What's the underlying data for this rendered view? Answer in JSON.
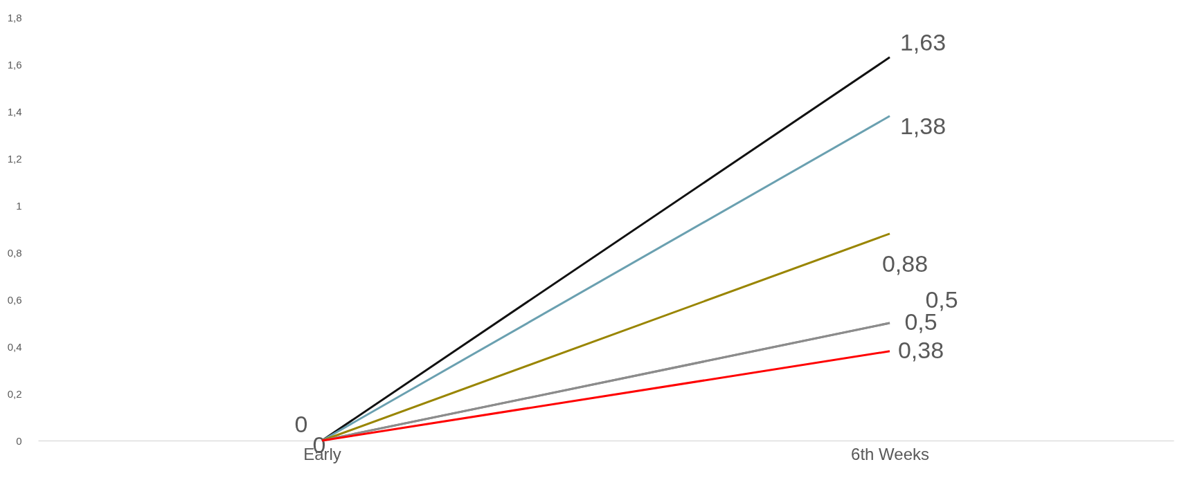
{
  "chart_data": {
    "type": "line",
    "categories": [
      "Early",
      "6th Weeks"
    ],
    "series": [
      {
        "color": "#111111",
        "values": [
          0,
          1.63
        ],
        "value_labels": [
          "0",
          "1,63"
        ]
      },
      {
        "color": "#6aa0b0",
        "values": [
          0,
          1.38
        ],
        "value_labels": [
          null,
          "1,38"
        ]
      },
      {
        "color": "#998500",
        "values": [
          0,
          0.88
        ],
        "value_labels": [
          null,
          "0,88"
        ]
      },
      {
        "color": "#808080",
        "values": [
          0,
          0.5
        ],
        "value_labels": [
          "0",
          "0,5"
        ]
      },
      {
        "color": "#8c8c8c",
        "values": [
          0,
          0.5
        ],
        "value_labels": [
          null,
          "0,5"
        ]
      },
      {
        "color": "#ff0000",
        "values": [
          0,
          0.38
        ],
        "value_labels": [
          null,
          "0,38"
        ]
      }
    ],
    "ylim": [
      0,
      1.8
    ],
    "yticks": [
      {
        "value": 0,
        "label": "0"
      },
      {
        "value": 0.2,
        "label": "0,2"
      },
      {
        "value": 0.4,
        "label": "0,4"
      },
      {
        "value": 0.6,
        "label": "0,6"
      },
      {
        "value": 0.8,
        "label": "0,8"
      },
      {
        "value": 1,
        "label": "1"
      },
      {
        "value": 1.2,
        "label": "1,2"
      },
      {
        "value": 1.4,
        "label": "1,4"
      },
      {
        "value": 1.6,
        "label": "1,6"
      },
      {
        "value": 1.8,
        "label": "1,8"
      }
    ],
    "grid": false,
    "marker": "none",
    "line_style": "solid"
  }
}
